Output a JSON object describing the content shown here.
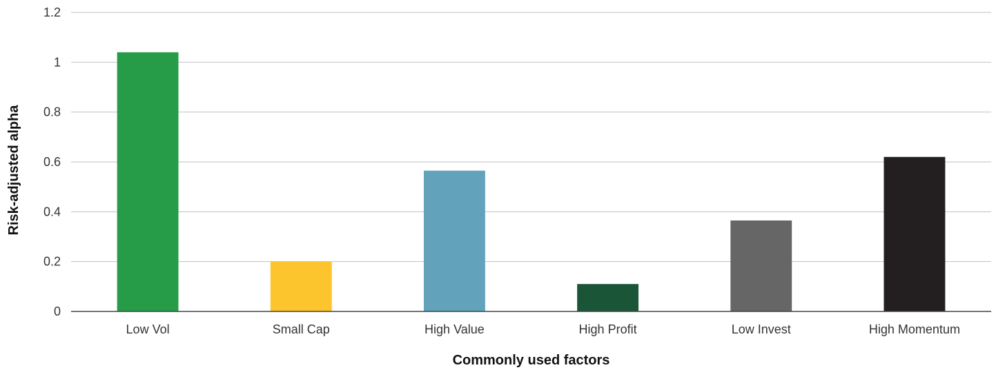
{
  "chart_data": {
    "type": "bar",
    "title": "",
    "xlabel": "Commonly used factors",
    "ylabel": "Risk-adjusted alpha",
    "categories": [
      "Low Vol",
      "Small Cap",
      "High Value",
      "High Profit",
      "Low Invest",
      "High Momentum"
    ],
    "values": [
      1.04,
      0.2,
      0.565,
      0.11,
      0.365,
      0.62
    ],
    "colors": [
      "#279c48",
      "#fcc42d",
      "#62a3bb",
      "#1b5538",
      "#666666",
      "#231f20"
    ],
    "ylim": [
      0,
      1.2
    ],
    "yticks": [
      "0",
      "0.2",
      "0.4",
      "0.6",
      "0.8",
      "1",
      "1.2"
    ],
    "grid": true,
    "legend": "none"
  }
}
